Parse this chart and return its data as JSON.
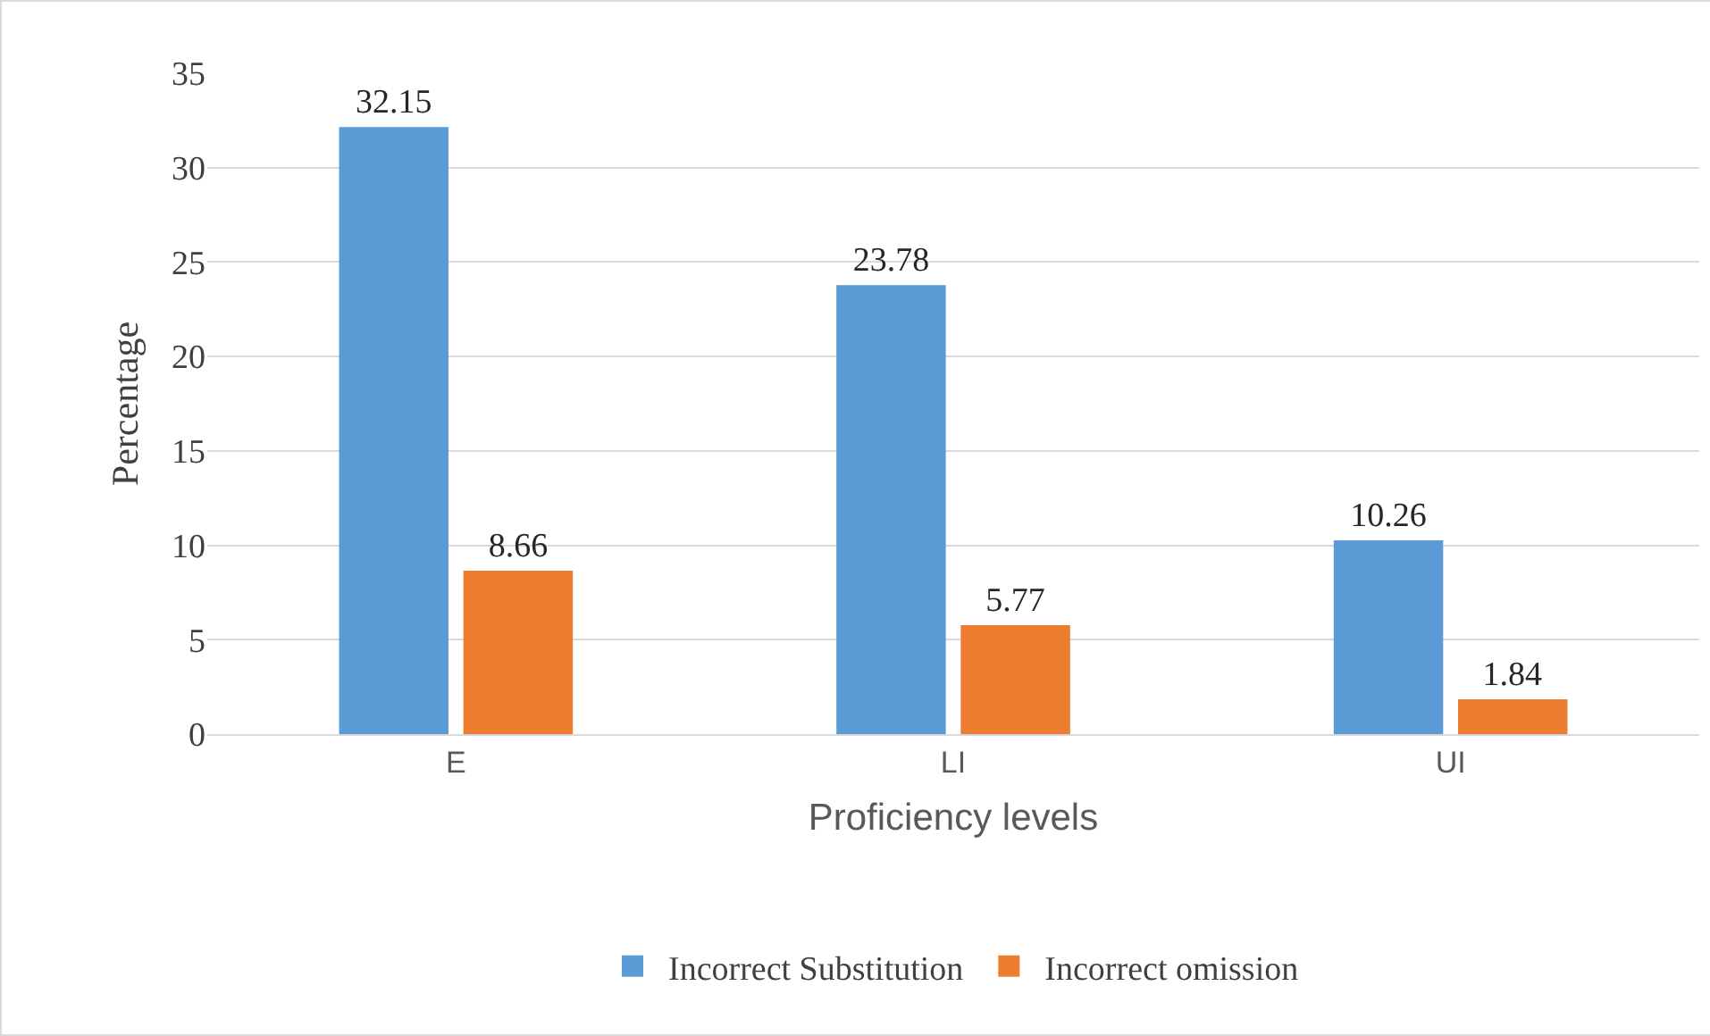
{
  "chart_data": {
    "type": "bar",
    "xlabel": "Proficiency levels",
    "ylabel": "Percentage",
    "categories": [
      "E",
      "LI",
      "UI"
    ],
    "series": [
      {
        "name": "Incorrect Substitution",
        "color": "#5b9bd5",
        "values": [
          32.15,
          23.78,
          10.26
        ]
      },
      {
        "name": "Incorrect omission",
        "color": "#ed7d31",
        "values": [
          8.66,
          5.77,
          1.84
        ]
      }
    ],
    "ylim": [
      0,
      35
    ],
    "yticks": [
      0,
      5,
      10,
      15,
      20,
      25,
      30,
      35
    ],
    "grid": "y",
    "legend": "bottom",
    "data_labels": true
  }
}
